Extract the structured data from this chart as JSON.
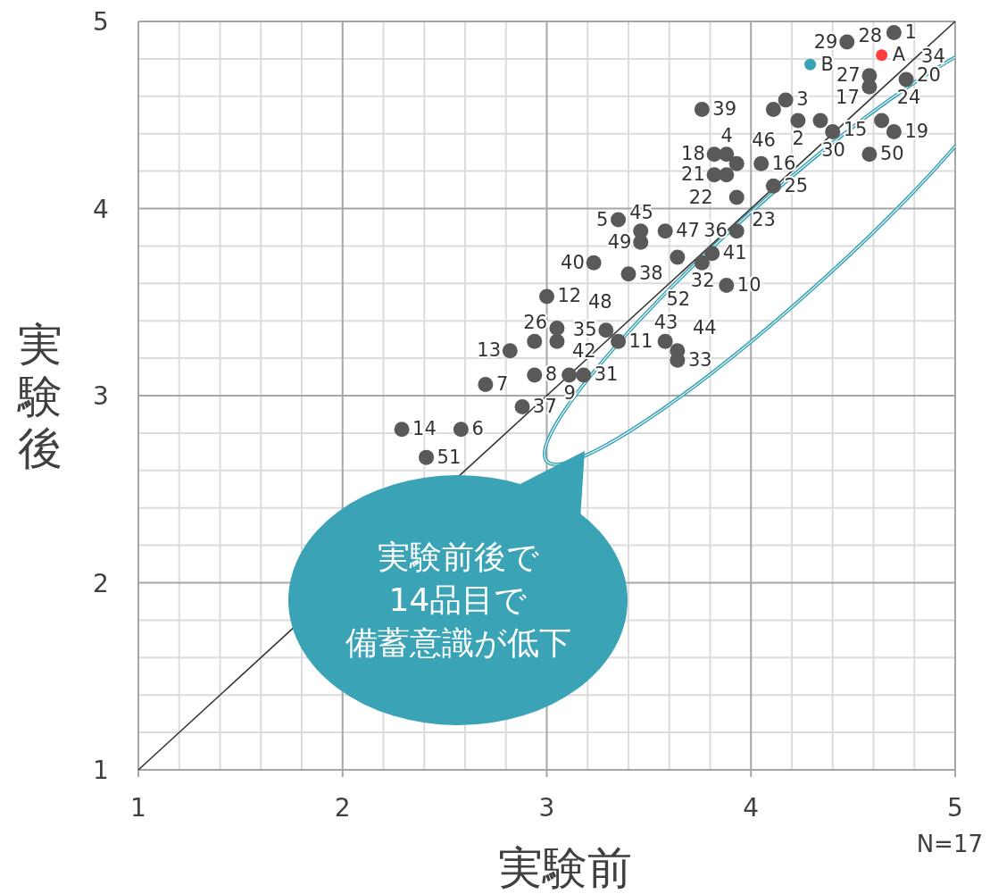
{
  "chart_data": {
    "type": "scatter",
    "xlabel": "実験前",
    "ylabel": "実験後",
    "xlim": [
      1,
      5
    ],
    "ylim": [
      1,
      5
    ],
    "xticks": [
      1,
      2,
      3,
      4,
      5
    ],
    "yticks": [
      1,
      2,
      3,
      4,
      5
    ],
    "grid": true,
    "legend": false,
    "marker": "circle",
    "series": [
      {
        "type": "line",
        "color": "#333333",
        "x": [
          1,
          5
        ],
        "values": [
          1,
          5
        ],
        "marker": "none"
      },
      {
        "color": "#595959",
        "x": [
          4.7,
          4.23,
          4.17,
          3.88,
          3.35,
          2.58,
          2.7,
          2.94,
          3.11,
          3.88,
          3.35,
          3.0,
          2.82,
          2.29,
          4.05,
          4.34,
          3.82,
          4.7,
          3.82,
          3.88,
          3.93,
          4.64,
          4.11,
          2.94,
          4.58,
          4.58,
          4.47,
          4.4,
          3.18,
          3.76,
          3.64,
          4.76,
          3.29,
          3.93,
          2.88,
          3.4,
          3.76,
          3.23,
          3.81,
          3.05,
          3.58,
          3.64,
          3.46,
          3.93,
          3.58,
          3.05,
          3.46,
          4.58,
          2.41,
          3.64,
          4.11
        ],
        "values": [
          4.94,
          4.47,
          4.58,
          4.29,
          3.94,
          2.82,
          3.06,
          3.11,
          3.11,
          3.59,
          3.29,
          3.53,
          3.24,
          2.82,
          4.24,
          4.47,
          4.29,
          4.41,
          4.18,
          4.18,
          4.06,
          4.47,
          4.12,
          3.29,
          4.71,
          4.65,
          4.89,
          4.41,
          3.11,
          3.71,
          3.19,
          4.69,
          3.35,
          3.88,
          2.94,
          3.65,
          4.53,
          3.71,
          3.76,
          3.36,
          3.29,
          3.24,
          3.88,
          4.24,
          3.88,
          3.29,
          3.82,
          4.29,
          2.67,
          3.74,
          4.53
        ]
      },
      {
        "name": "A",
        "color": "#ff3b3b",
        "x": [
          4.64
        ],
        "values": [
          4.82
        ]
      },
      {
        "name": "B",
        "color": "#3aa3b5",
        "x": [
          4.29
        ],
        "values": [
          4.77
        ]
      }
    ],
    "annotations": [
      "実験前後で",
      "14品目で",
      "備蓄意識が低下",
      "N=17",
      {
        "text": "1",
        "x": 4.7,
        "y": 4.94
      },
      {
        "text": "2",
        "x": 4.23,
        "y": 4.47
      },
      {
        "text": "3",
        "x": 4.17,
        "y": 4.58
      },
      {
        "text": "4",
        "x": 3.88,
        "y": 4.29
      },
      {
        "text": "5",
        "x": 3.35,
        "y": 3.94
      },
      {
        "text": "6",
        "x": 2.58,
        "y": 2.82
      },
      {
        "text": "7",
        "x": 2.7,
        "y": 3.06
      },
      {
        "text": "8",
        "x": 2.94,
        "y": 3.11
      },
      {
        "text": "9",
        "x": 3.11,
        "y": 3.11
      },
      {
        "text": "10",
        "x": 3.88,
        "y": 3.59
      },
      {
        "text": "11",
        "x": 3.35,
        "y": 3.29
      },
      {
        "text": "12",
        "x": 3.0,
        "y": 3.53
      },
      {
        "text": "13",
        "x": 2.82,
        "y": 3.24
      },
      {
        "text": "14",
        "x": 2.29,
        "y": 2.82
      },
      {
        "text": "15",
        "x": 4.4,
        "y": 4.42
      },
      {
        "text": "16",
        "x": 4.05,
        "y": 4.24
      },
      {
        "text": "17",
        "x": 4.34,
        "y": 4.47
      },
      {
        "text": "18",
        "x": 3.82,
        "y": 4.29
      },
      {
        "text": "19",
        "x": 4.7,
        "y": 4.41
      },
      {
        "text": "20",
        "x": 4.76,
        "y": 4.71
      },
      {
        "text": "21",
        "x": 3.82,
        "y": 4.18
      },
      {
        "text": "22",
        "x": 3.88,
        "y": 4.18
      },
      {
        "text": "23",
        "x": 3.93,
        "y": 4.06
      },
      {
        "text": "24",
        "x": 4.64,
        "y": 4.47
      },
      {
        "text": "25",
        "x": 4.11,
        "y": 4.12
      },
      {
        "text": "26",
        "x": 2.94,
        "y": 3.29
      },
      {
        "text": "27",
        "x": 4.58,
        "y": 4.71
      },
      {
        "text": "28",
        "x": 4.58,
        "y": 4.65
      },
      {
        "text": "29",
        "x": 4.47,
        "y": 4.89
      },
      {
        "text": "30",
        "x": 4.4,
        "y": 4.41
      },
      {
        "text": "31",
        "x": 3.18,
        "y": 3.11
      },
      {
        "text": "32",
        "x": 3.76,
        "y": 3.71
      },
      {
        "text": "33",
        "x": 3.64,
        "y": 3.19
      },
      {
        "text": "34",
        "x": 4.76,
        "y": 4.69
      },
      {
        "text": "35",
        "x": 3.29,
        "y": 3.35
      },
      {
        "text": "36",
        "x": 3.93,
        "y": 3.88
      },
      {
        "text": "37",
        "x": 2.88,
        "y": 2.94
      },
      {
        "text": "38",
        "x": 3.4,
        "y": 3.65
      },
      {
        "text": "39",
        "x": 3.76,
        "y": 4.53
      },
      {
        "text": "40",
        "x": 3.23,
        "y": 3.71
      },
      {
        "text": "41",
        "x": 3.81,
        "y": 3.76
      },
      {
        "text": "42",
        "x": 3.05,
        "y": 3.36
      },
      {
        "text": "43",
        "x": 3.58,
        "y": 3.29
      },
      {
        "text": "44",
        "x": 3.64,
        "y": 3.24
      },
      {
        "text": "45",
        "x": 3.46,
        "y": 3.88
      },
      {
        "text": "46",
        "x": 3.93,
        "y": 4.24
      },
      {
        "text": "47",
        "x": 3.58,
        "y": 3.88
      },
      {
        "text": "48",
        "x": 3.05,
        "y": 3.29
      },
      {
        "text": "49",
        "x": 3.46,
        "y": 3.82
      },
      {
        "text": "50",
        "x": 4.58,
        "y": 4.29
      },
      {
        "text": "51",
        "x": 2.41,
        "y": 2.67
      },
      {
        "text": "52",
        "x": 3.64,
        "y": 3.74
      }
    ]
  }
}
